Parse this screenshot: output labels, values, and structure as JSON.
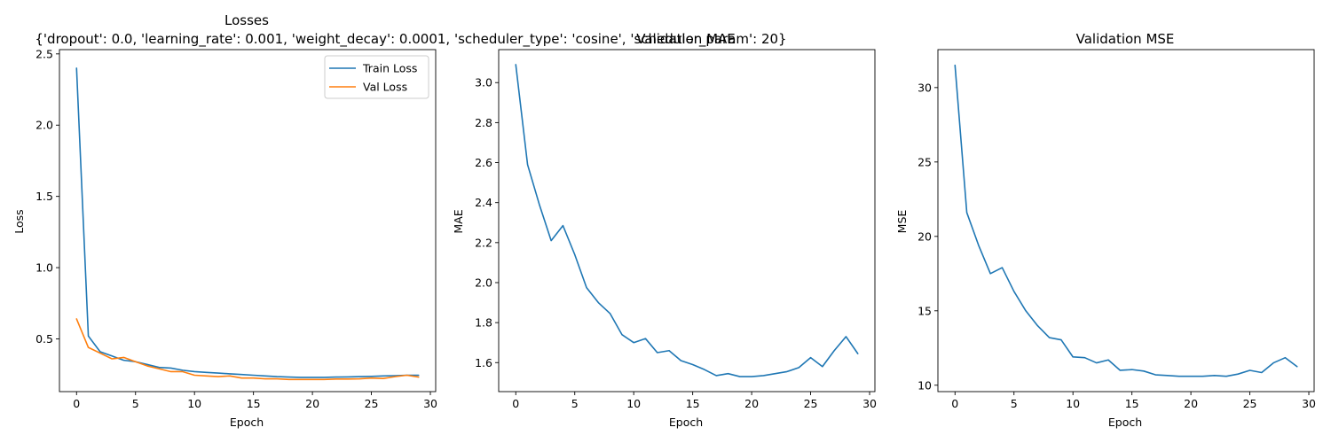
{
  "figure": {
    "suptitle": "{'dropout': 0.0, 'learning_rate': 0.001, 'weight_decay': 0.0001, 'scheduler_type': 'cosine', 'scheduler_param': 20}"
  },
  "colors": {
    "train": "#1f77b4",
    "val": "#ff7f0e",
    "axes": "#000000"
  },
  "chart_data": [
    {
      "type": "line",
      "title": "Losses",
      "xlabel": "Epoch",
      "ylabel": "Loss",
      "xlim": [
        -1.45,
        30.45
      ],
      "ylim": [
        0.13,
        2.53
      ],
      "xticks": [
        0,
        5,
        10,
        15,
        20,
        25,
        30
      ],
      "yticks": [
        0.5,
        1.0,
        1.5,
        2.0,
        2.5
      ],
      "ytick_labels": [
        "0.5",
        "1.0",
        "1.5",
        "2.0",
        "2.5"
      ],
      "grid": false,
      "legend": "top-right",
      "x": [
        0,
        1,
        2,
        3,
        4,
        5,
        6,
        7,
        8,
        9,
        10,
        11,
        12,
        13,
        14,
        15,
        16,
        17,
        18,
        19,
        20,
        21,
        22,
        23,
        24,
        25,
        26,
        27,
        28,
        29
      ],
      "series": [
        {
          "name": "Train Loss",
          "color": "#1f77b4",
          "values": [
            2.4,
            0.52,
            0.41,
            0.38,
            0.35,
            0.34,
            0.32,
            0.3,
            0.295,
            0.28,
            0.27,
            0.265,
            0.26,
            0.255,
            0.25,
            0.245,
            0.24,
            0.235,
            0.232,
            0.23,
            0.23,
            0.23,
            0.232,
            0.233,
            0.235,
            0.237,
            0.24,
            0.242,
            0.245,
            0.245
          ]
        },
        {
          "name": "Val Loss",
          "color": "#ff7f0e",
          "values": [
            0.64,
            0.44,
            0.4,
            0.36,
            0.37,
            0.34,
            0.31,
            0.29,
            0.27,
            0.27,
            0.245,
            0.24,
            0.235,
            0.24,
            0.225,
            0.225,
            0.22,
            0.22,
            0.215,
            0.215,
            0.215,
            0.215,
            0.218,
            0.218,
            0.22,
            0.225,
            0.222,
            0.235,
            0.245,
            0.232
          ]
        }
      ]
    },
    {
      "type": "line",
      "title": "Validation MAE",
      "xlabel": "Epoch",
      "ylabel": "MAE",
      "xlim": [
        -1.45,
        30.45
      ],
      "ylim": [
        1.455,
        3.165
      ],
      "xticks": [
        0,
        5,
        10,
        15,
        20,
        25,
        30
      ],
      "yticks": [
        1.6,
        1.8,
        2.0,
        2.2,
        2.4,
        2.6,
        2.8,
        3.0
      ],
      "ytick_labels": [
        "1.6",
        "1.8",
        "2.0",
        "2.2",
        "2.4",
        "2.6",
        "2.8",
        "3.0"
      ],
      "grid": false,
      "x": [
        0,
        1,
        2,
        3,
        4,
        5,
        6,
        7,
        8,
        9,
        10,
        11,
        12,
        13,
        14,
        15,
        16,
        17,
        18,
        19,
        20,
        21,
        22,
        23,
        24,
        25,
        26,
        27,
        28,
        29
      ],
      "series": [
        {
          "color": "#1f77b4",
          "values": [
            3.09,
            2.59,
            2.39,
            2.21,
            2.285,
            2.14,
            1.975,
            1.9,
            1.845,
            1.74,
            1.7,
            1.72,
            1.65,
            1.66,
            1.61,
            1.59,
            1.565,
            1.535,
            1.545,
            1.53,
            1.53,
            1.535,
            1.545,
            1.555,
            1.575,
            1.625,
            1.58,
            1.66,
            1.73,
            1.645
          ]
        }
      ]
    },
    {
      "type": "line",
      "title": "Validation MSE",
      "xlabel": "Epoch",
      "ylabel": "MSE",
      "xlim": [
        -1.45,
        30.45
      ],
      "ylim": [
        9.57,
        32.55
      ],
      "xticks": [
        0,
        5,
        10,
        15,
        20,
        25,
        30
      ],
      "yticks": [
        10,
        15,
        20,
        25,
        30
      ],
      "ytick_labels": [
        "10",
        "15",
        "20",
        "25",
        "30"
      ],
      "grid": false,
      "x": [
        0,
        1,
        2,
        3,
        4,
        5,
        6,
        7,
        8,
        9,
        10,
        11,
        12,
        13,
        14,
        15,
        16,
        17,
        18,
        19,
        20,
        21,
        22,
        23,
        24,
        25,
        26,
        27,
        28,
        29
      ],
      "series": [
        {
          "color": "#1f77b4",
          "values": [
            31.5,
            21.6,
            19.4,
            17.5,
            17.9,
            16.3,
            15.0,
            14.0,
            13.2,
            13.05,
            11.9,
            11.85,
            11.5,
            11.7,
            11.0,
            11.05,
            10.95,
            10.7,
            10.65,
            10.6,
            10.6,
            10.6,
            10.65,
            10.6,
            10.75,
            11.0,
            10.85,
            11.5,
            11.85,
            11.25
          ]
        }
      ]
    }
  ]
}
